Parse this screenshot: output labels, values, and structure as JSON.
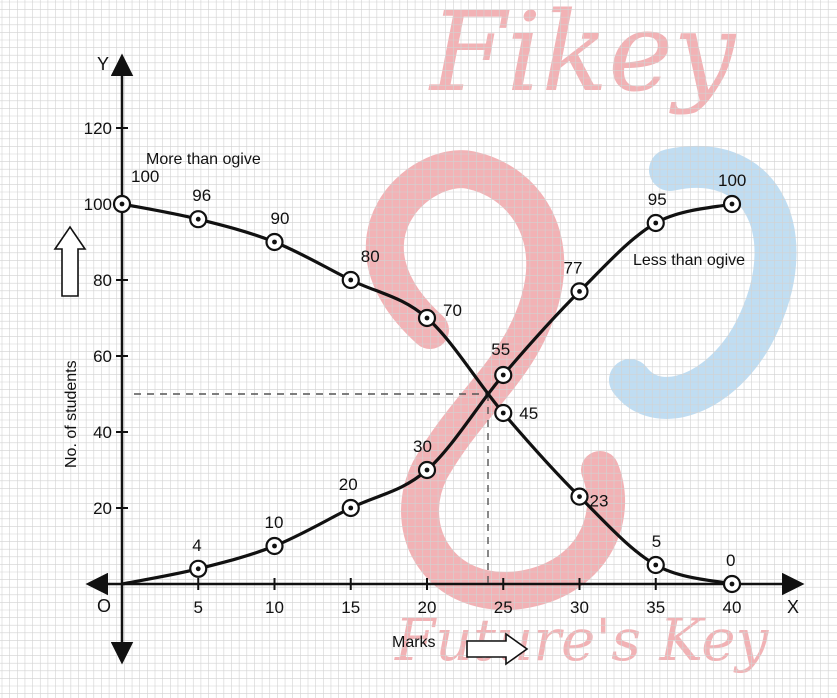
{
  "chart_data": {
    "type": "line",
    "title": "",
    "xlabel": "Marks",
    "ylabel": "No. of students",
    "x_axis_letter": "X",
    "y_axis_letter": "Y",
    "origin_label": "O",
    "xlim": [
      0,
      40
    ],
    "ylim": [
      0,
      120
    ],
    "x_ticks": [
      5,
      10,
      15,
      20,
      25,
      30,
      35,
      40
    ],
    "y_ticks": [
      20,
      40,
      60,
      80,
      100,
      120
    ],
    "grid": true,
    "series": [
      {
        "name": "More than ogive",
        "color": "#111111",
        "points": [
          {
            "x": 0,
            "y": 100,
            "label": "100"
          },
          {
            "x": 5,
            "y": 96,
            "label": "96"
          },
          {
            "x": 10,
            "y": 90,
            "label": "90"
          },
          {
            "x": 15,
            "y": 80,
            "label": "80"
          },
          {
            "x": 20,
            "y": 70,
            "label": "70"
          },
          {
            "x": 25,
            "y": 45,
            "label": "45"
          },
          {
            "x": 30,
            "y": 23,
            "label": "23"
          },
          {
            "x": 35,
            "y": 5,
            "label": "5"
          },
          {
            "x": 40,
            "y": 0,
            "label": "0"
          }
        ]
      },
      {
        "name": "Less than ogive",
        "color": "#111111",
        "points": [
          {
            "x": 0,
            "y": 0,
            "label": ""
          },
          {
            "x": 5,
            "y": 4,
            "label": "4"
          },
          {
            "x": 10,
            "y": 10,
            "label": "10"
          },
          {
            "x": 15,
            "y": 20,
            "label": "20"
          },
          {
            "x": 20,
            "y": 30,
            "label": "30"
          },
          {
            "x": 25,
            "y": 55,
            "label": "55"
          },
          {
            "x": 30,
            "y": 77,
            "label": "77"
          },
          {
            "x": 35,
            "y": 95,
            "label": "95"
          },
          {
            "x": 40,
            "y": 100,
            "label": "100"
          }
        ]
      }
    ],
    "intersection": {
      "x": 24,
      "y": 50
    },
    "colors": {
      "grid": "#d2d2d2",
      "axis": "#111111",
      "watermark": "#e8757a",
      "watermark_blue": "#8ec3e8"
    }
  },
  "watermark": {
    "top_text": "Fikey",
    "bottom_text": "Future's Key"
  }
}
